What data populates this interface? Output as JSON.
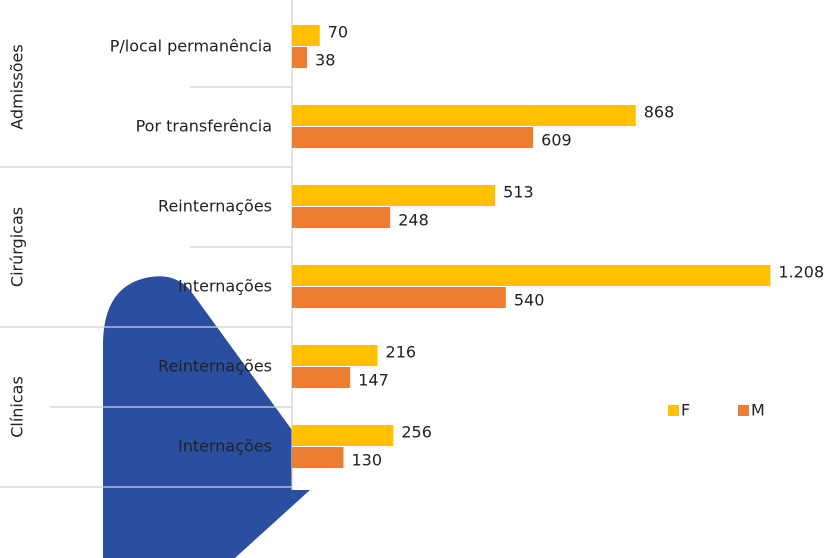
{
  "chart_data": {
    "type": "bar",
    "orientation": "horizontal",
    "groups": [
      {
        "name": "Admissões",
        "categories": [
          "P/local permanência",
          "Por transferência"
        ]
      },
      {
        "name": "Cirúrgicas",
        "categories": [
          "Reinternações",
          "Internações"
        ]
      },
      {
        "name": "Clínicas",
        "categories": [
          "Reinternações",
          "Internações"
        ]
      }
    ],
    "series": [
      {
        "name": "F",
        "color": "#ffc000",
        "values": [
          70,
          868,
          513,
          1208,
          216,
          256
        ],
        "value_labels": [
          "70",
          "868",
          "513",
          "1.208",
          "216",
          "256"
        ]
      },
      {
        "name": "M",
        "color": "#ed7d31",
        "values": [
          38,
          609,
          248,
          540,
          147,
          130
        ]
      }
    ]
  }
}
